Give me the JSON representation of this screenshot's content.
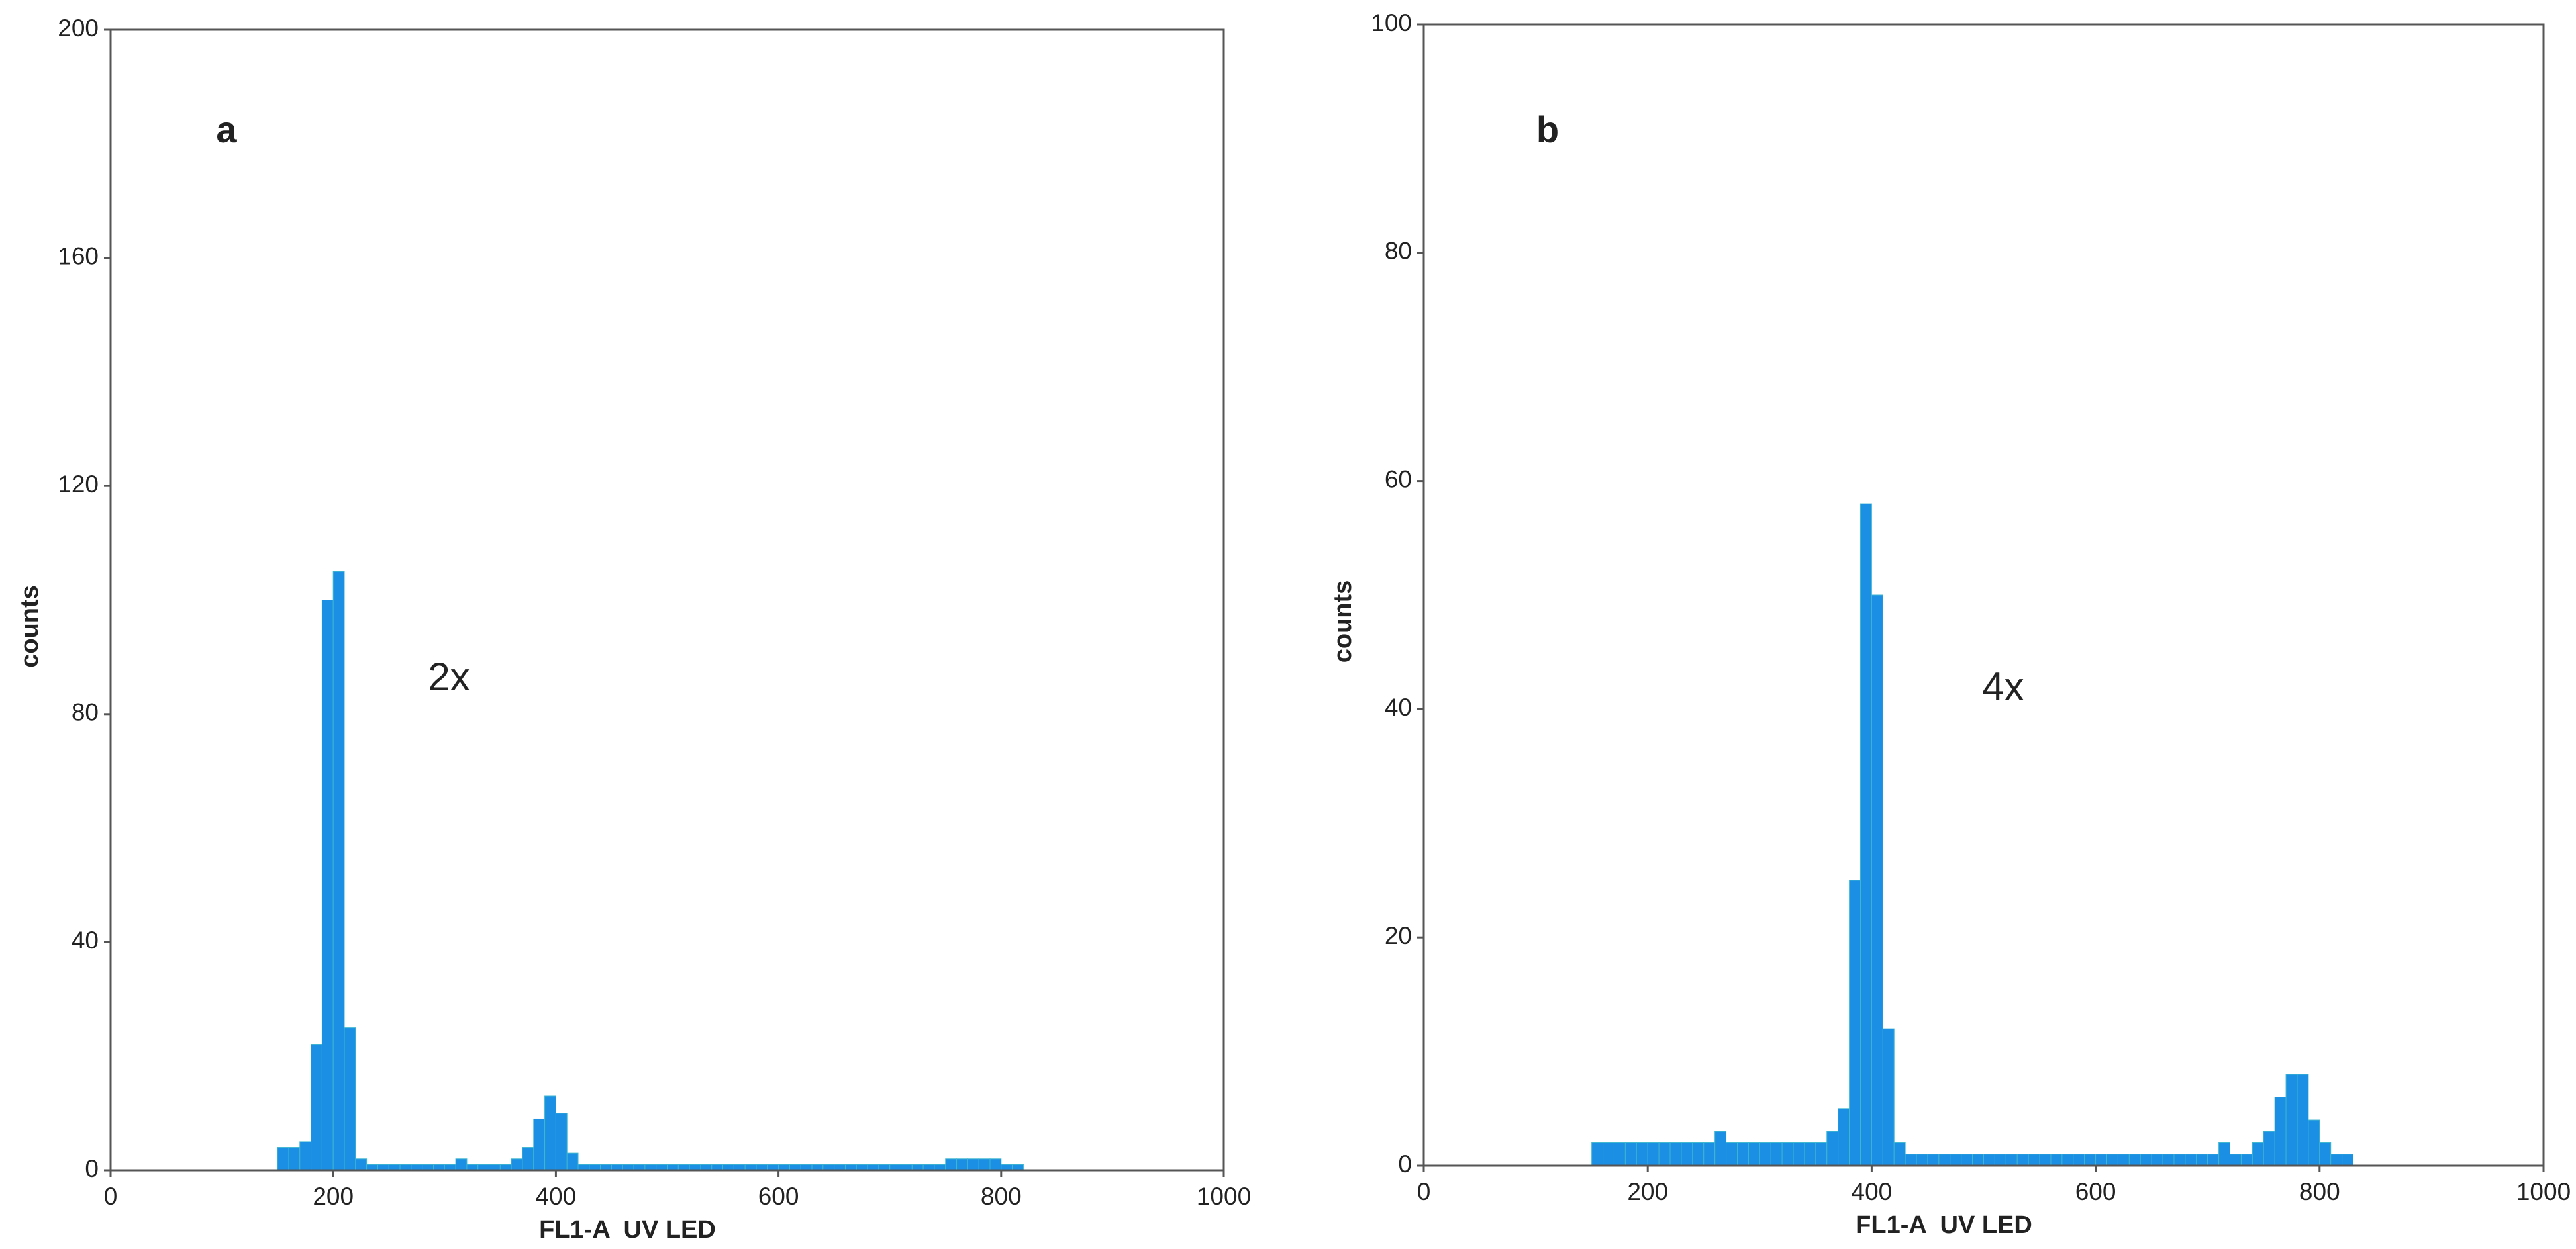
{
  "chart_data": [
    {
      "type": "histogram",
      "panel_label": "a",
      "annotation": "2x",
      "xlabel": "FL1-A  UV LED",
      "ylabel": "counts",
      "color": "#1a8fe3",
      "xlim": [
        0,
        1000
      ],
      "ylim": [
        0,
        200
      ],
      "xticks": [
        0,
        200,
        400,
        600,
        800,
        1000
      ],
      "yticks": [
        0,
        40,
        80,
        120,
        160,
        200
      ],
      "bins": [
        150,
        160,
        170,
        180,
        190,
        200,
        210,
        220,
        230,
        240,
        250,
        260,
        270,
        280,
        290,
        300,
        310,
        320,
        330,
        340,
        350,
        360,
        370,
        380,
        390,
        400,
        410,
        420,
        430,
        440,
        450,
        460,
        470,
        480,
        490,
        500,
        510,
        520,
        530,
        540,
        550,
        560,
        570,
        580,
        590,
        600,
        610,
        620,
        630,
        640,
        650,
        660,
        670,
        680,
        690,
        700,
        710,
        720,
        730,
        740,
        750,
        760,
        770,
        780,
        790,
        800,
        810,
        820,
        830
      ],
      "values": [
        4,
        4,
        5,
        22,
        100,
        105,
        25,
        2,
        1,
        1,
        1,
        1,
        1,
        1,
        1,
        1,
        2,
        1,
        1,
        1,
        1,
        2,
        4,
        9,
        13,
        10,
        3,
        1,
        1,
        1,
        1,
        1,
        1,
        1,
        1,
        1,
        1,
        1,
        1,
        1,
        1,
        1,
        1,
        1,
        1,
        1,
        1,
        1,
        1,
        1,
        1,
        1,
        1,
        1,
        1,
        1,
        1,
        1,
        1,
        1,
        2,
        2,
        2,
        2,
        2,
        1,
        1,
        0
      ]
    },
    {
      "type": "histogram",
      "panel_label": "b",
      "annotation": "4x",
      "xlabel": "FL1-A  UV LED",
      "ylabel": "counts",
      "color": "#1a8fe3",
      "xlim": [
        0,
        1000
      ],
      "ylim": [
        0,
        100
      ],
      "xticks": [
        0,
        200,
        400,
        600,
        800,
        1000
      ],
      "yticks": [
        0,
        20,
        40,
        60,
        80,
        100
      ],
      "bins": [
        150,
        160,
        170,
        180,
        190,
        200,
        210,
        220,
        230,
        240,
        250,
        260,
        270,
        280,
        290,
        300,
        310,
        320,
        330,
        340,
        350,
        360,
        370,
        380,
        390,
        400,
        410,
        420,
        430,
        440,
        450,
        460,
        470,
        480,
        490,
        500,
        510,
        520,
        530,
        540,
        550,
        560,
        570,
        580,
        590,
        600,
        610,
        620,
        630,
        640,
        650,
        660,
        670,
        680,
        690,
        700,
        710,
        720,
        730,
        740,
        750,
        760,
        770,
        780,
        790,
        800,
        810,
        820,
        830
      ],
      "values": [
        2,
        2,
        2,
        2,
        2,
        2,
        2,
        2,
        2,
        2,
        2,
        3,
        2,
        2,
        2,
        2,
        2,
        2,
        2,
        2,
        2,
        3,
        5,
        25,
        58,
        50,
        12,
        2,
        1,
        1,
        1,
        1,
        1,
        1,
        1,
        1,
        1,
        1,
        1,
        1,
        1,
        1,
        1,
        1,
        1,
        1,
        1,
        1,
        1,
        1,
        1,
        1,
        1,
        1,
        1,
        1,
        2,
        1,
        1,
        2,
        3,
        6,
        8,
        8,
        4,
        2,
        1,
        1
      ]
    }
  ]
}
